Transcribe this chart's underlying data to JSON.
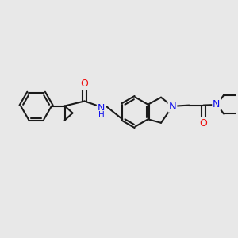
{
  "bg_color": "#e8e8e8",
  "bond_color": "#1a1a1a",
  "N_color": "#1010ee",
  "O_color": "#ee1010",
  "line_width": 1.5,
  "font_size": 8.0,
  "fig_w": 3.0,
  "fig_h": 3.0,
  "dpi": 100,
  "xlim": [
    0,
    10
  ],
  "ylim": [
    0,
    10
  ]
}
